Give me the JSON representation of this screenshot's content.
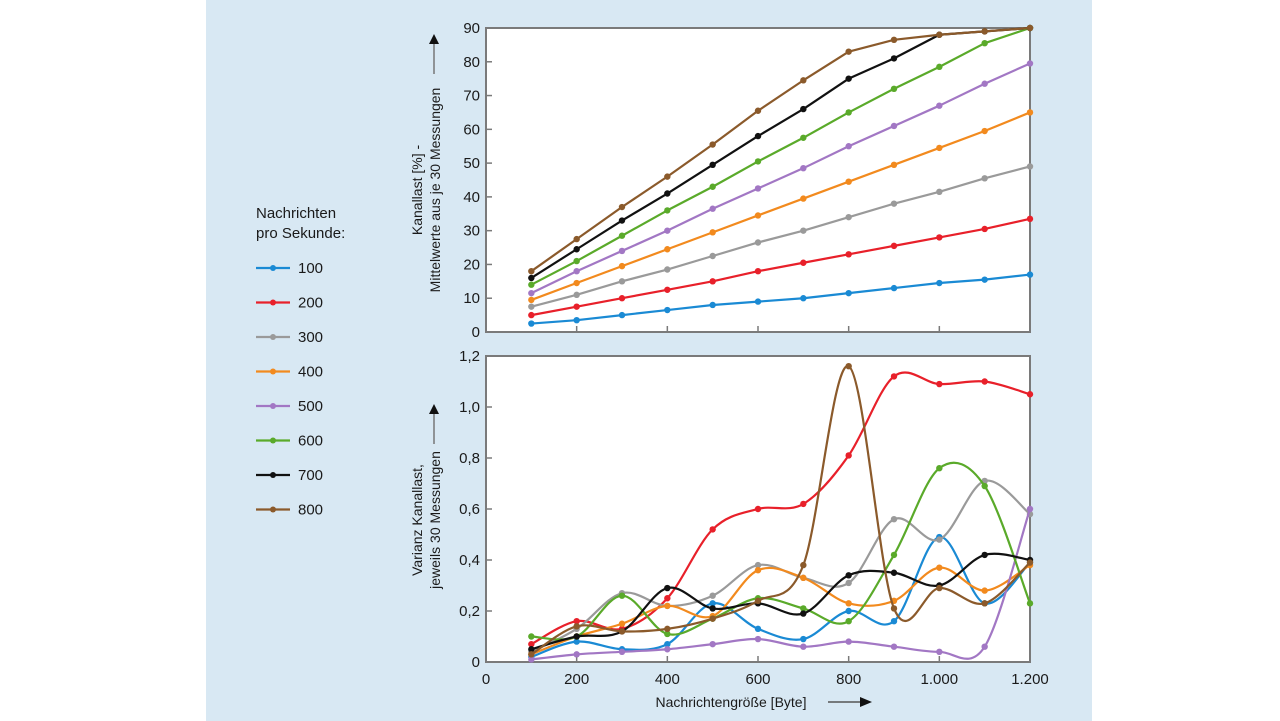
{
  "chart_data": [
    {
      "type": "line",
      "title": "",
      "xlabel": "Nachrichtengröße [Byte]",
      "ylabel_lines": [
        "Kanallast [%] -",
        "Mittelwerte aus je 30 Messungen"
      ],
      "ylabel": "Kanallast [%] - Mittelwerte aus je 30 Messungen",
      "xlim": [
        0,
        1200
      ],
      "ylim": [
        0,
        90
      ],
      "x_ticks": [
        0,
        200,
        400,
        600,
        800,
        1000,
        1200
      ],
      "y_ticks": [
        0,
        10,
        20,
        30,
        40,
        50,
        60,
        70,
        80,
        90
      ],
      "y_tick_labels": [
        "0",
        "10",
        "20",
        "30",
        "40",
        "50",
        "60",
        "70",
        "80",
        "90"
      ],
      "grid": false,
      "smooth": false,
      "x": [
        100,
        200,
        300,
        400,
        500,
        600,
        700,
        800,
        900,
        1000,
        1100,
        1200
      ],
      "series": [
        {
          "name": "100",
          "values": [
            2.5,
            3.5,
            5,
            6.5,
            8,
            9,
            10,
            11.5,
            13,
            14.5,
            15.5,
            17
          ]
        },
        {
          "name": "200",
          "values": [
            5,
            7.5,
            10,
            12.5,
            15,
            18,
            20.5,
            23,
            25.5,
            28,
            30.5,
            33.5
          ]
        },
        {
          "name": "300",
          "values": [
            7.5,
            11,
            15,
            18.5,
            22.5,
            26.5,
            30,
            34,
            38,
            41.5,
            45.5,
            49
          ]
        },
        {
          "name": "400",
          "values": [
            9.5,
            14.5,
            19.5,
            24.5,
            29.5,
            34.5,
            39.5,
            44.5,
            49.5,
            54.5,
            59.5,
            65
          ]
        },
        {
          "name": "500",
          "values": [
            11.5,
            18,
            24,
            30,
            36.5,
            42.5,
            48.5,
            55,
            61,
            67,
            73.5,
            79.5
          ]
        },
        {
          "name": "600",
          "values": [
            14,
            21,
            28.5,
            36,
            43,
            50.5,
            57.5,
            65,
            72,
            78.5,
            85.5,
            90
          ]
        },
        {
          "name": "700",
          "values": [
            16,
            24.5,
            33,
            41,
            49.5,
            58,
            66,
            75,
            81,
            88,
            89,
            90
          ]
        },
        {
          "name": "800",
          "values": [
            18,
            27.5,
            37,
            46,
            55.5,
            65.5,
            74.5,
            83,
            86.5,
            88,
            89,
            90
          ]
        }
      ]
    },
    {
      "type": "line",
      "title": "",
      "xlabel": "Nachrichtengröße [Byte]",
      "ylabel_lines": [
        "Varianz Kanallast,",
        "jeweils 30 Messungen"
      ],
      "ylabel": "Varianz Kanallast, jeweils 30 Messungen",
      "xlim": [
        0,
        1200
      ],
      "ylim": [
        0,
        1.2
      ],
      "x_ticks": [
        0,
        200,
        400,
        600,
        800,
        1000,
        1200
      ],
      "x_tick_labels": [
        "0",
        "200",
        "400",
        "600",
        "800",
        "1.000",
        "1.200"
      ],
      "y_ticks": [
        0,
        0.2,
        0.4,
        0.6,
        0.8,
        1.0,
        1.2
      ],
      "y_tick_labels": [
        "0",
        "0,2",
        "0,4",
        "0,6",
        "0,8",
        "1,0",
        "1,2"
      ],
      "grid": false,
      "smooth": true,
      "x": [
        100,
        200,
        300,
        400,
        500,
        600,
        700,
        800,
        900,
        1000,
        1100,
        1200
      ],
      "series": [
        {
          "name": "100",
          "values": [
            0.02,
            0.08,
            0.05,
            0.07,
            0.23,
            0.13,
            0.09,
            0.2,
            0.16,
            0.49,
            0.23,
            0.39
          ]
        },
        {
          "name": "200",
          "values": [
            0.07,
            0.16,
            0.13,
            0.25,
            0.52,
            0.6,
            0.62,
            0.81,
            1.12,
            1.09,
            1.1,
            1.05
          ]
        },
        {
          "name": "300",
          "values": [
            0.04,
            0.13,
            0.27,
            0.22,
            0.26,
            0.38,
            0.33,
            0.31,
            0.56,
            0.48,
            0.71,
            0.58
          ]
        },
        {
          "name": "400",
          "values": [
            0.03,
            0.1,
            0.15,
            0.22,
            0.18,
            0.36,
            0.33,
            0.23,
            0.24,
            0.37,
            0.28,
            0.38
          ]
        },
        {
          "name": "500",
          "values": [
            0.01,
            0.03,
            0.04,
            0.05,
            0.07,
            0.09,
            0.06,
            0.08,
            0.06,
            0.04,
            0.06,
            0.6
          ]
        },
        {
          "name": "600",
          "values": [
            0.1,
            0.1,
            0.26,
            0.11,
            0.17,
            0.25,
            0.21,
            0.16,
            0.42,
            0.76,
            0.69,
            0.23
          ]
        },
        {
          "name": "700",
          "values": [
            0.05,
            0.1,
            0.12,
            0.29,
            0.21,
            0.23,
            0.19,
            0.34,
            0.35,
            0.3,
            0.42,
            0.4
          ]
        },
        {
          "name": "800",
          "values": [
            0.03,
            0.14,
            0.12,
            0.13,
            0.17,
            0.24,
            0.38,
            1.16,
            0.21,
            0.29,
            0.23,
            0.39
          ]
        }
      ]
    }
  ],
  "legend": {
    "title_lines": [
      "Nachrichten",
      "pro Sekunde:"
    ],
    "placement": "left",
    "items": [
      {
        "label": "100",
        "color": "#1a8ad4"
      },
      {
        "label": "200",
        "color": "#e8202a"
      },
      {
        "label": "300",
        "color": "#9a9a9a"
      },
      {
        "label": "400",
        "color": "#f28a1e"
      },
      {
        "label": "500",
        "color": "#a277c4"
      },
      {
        "label": "600",
        "color": "#5aaa2a"
      },
      {
        "label": "700",
        "color": "#111111"
      },
      {
        "label": "800",
        "color": "#8b5a2b"
      }
    ]
  },
  "colors": {
    "panel_background": "#d8e8f3",
    "plot_background": "#ffffff",
    "axis": "#7a7a7a"
  }
}
